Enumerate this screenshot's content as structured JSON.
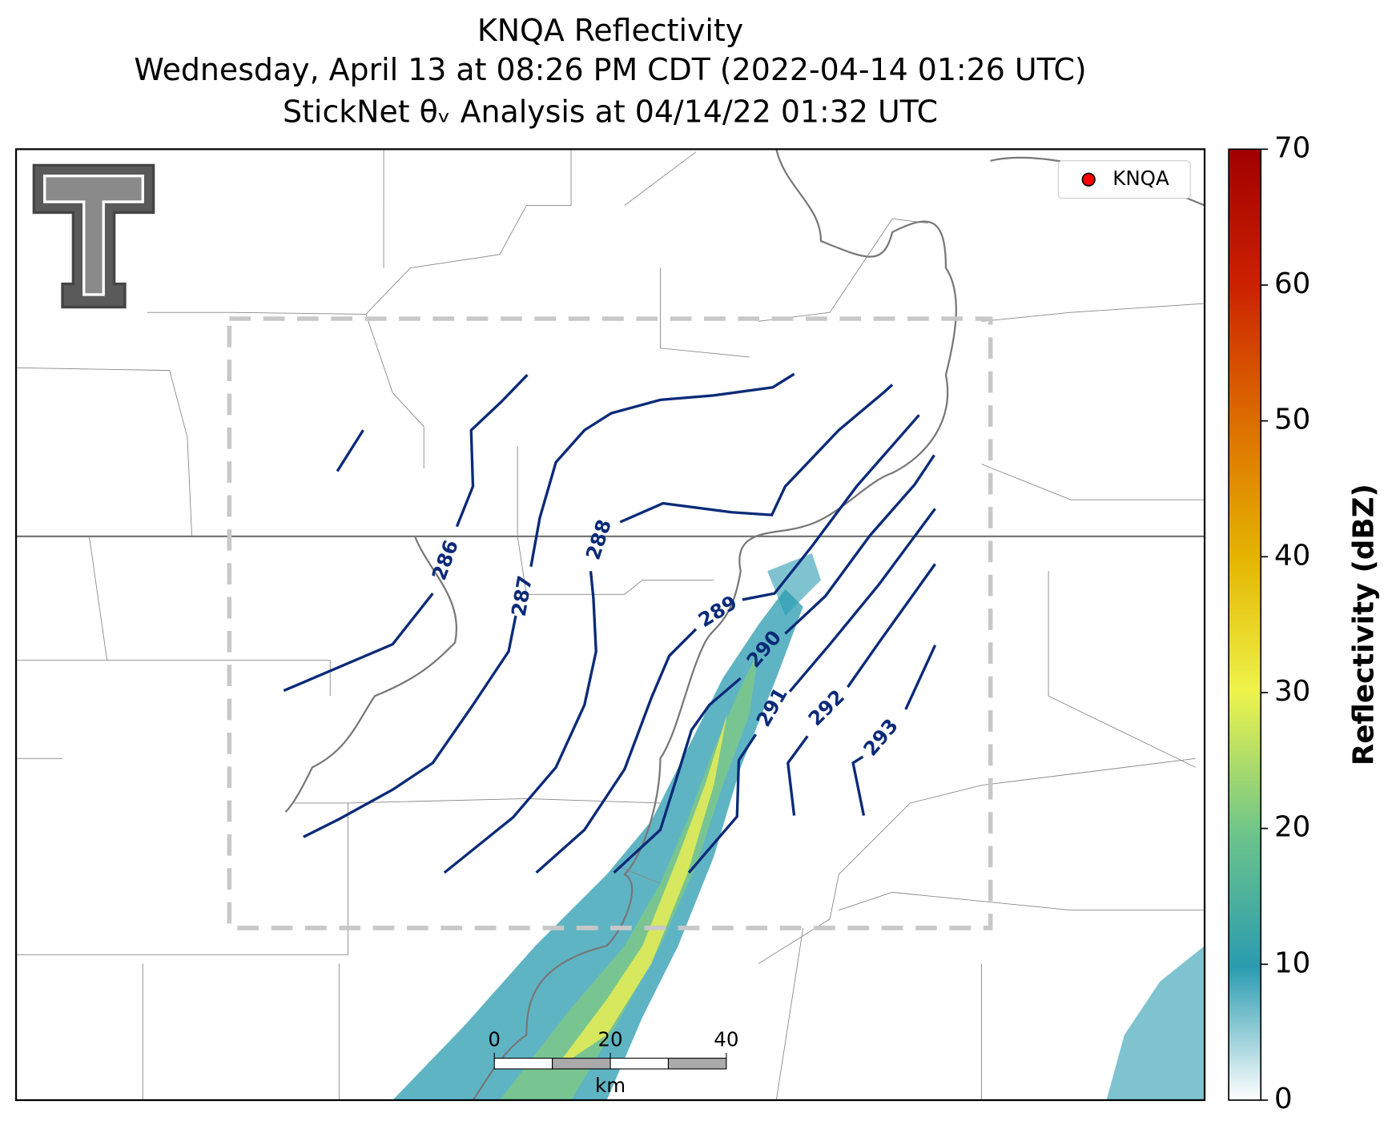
{
  "title": [
    "KNQA Reflectivity",
    "Wednesday, April 13 at 08:26 PM CDT (2022-04-14 01:26 UTC)",
    "StickNet θᵥ Analysis at 04/14/22 01:32 UTC"
  ],
  "legend": {
    "label": "KNQA",
    "color": "#ff0000"
  },
  "contours": {
    "labels": [
      286,
      287,
      288,
      289,
      290,
      291,
      292,
      293
    ],
    "color": "#0b2a78"
  },
  "colorbar": {
    "label": "Reflectivity (dBZ)",
    "lim": [
      0,
      70
    ],
    "ticks": [
      0,
      10,
      20,
      30,
      40,
      50,
      60,
      70
    ]
  },
  "scale_bar": {
    "ticks": [
      0,
      20,
      40
    ],
    "lim": [
      0,
      40
    ],
    "unit": "km"
  }
}
